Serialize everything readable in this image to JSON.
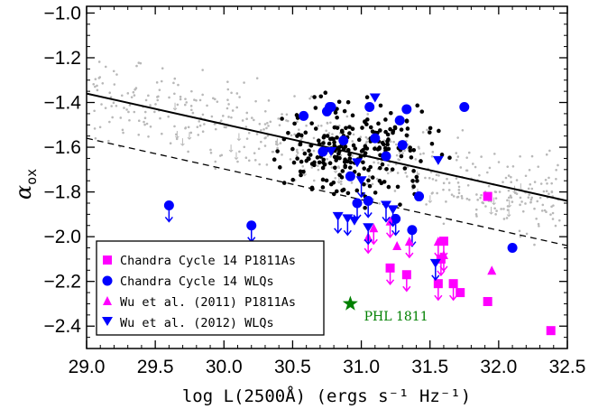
{
  "chart_data": {
    "type": "scatter",
    "xlabel": "log L(2500Å) (ergs s⁻¹ Hz⁻¹)",
    "ylabel_main": "α",
    "ylabel_sub": "ox",
    "xlim": [
      29.0,
      32.5
    ],
    "ylim": [
      -2.5,
      -0.97
    ],
    "xticks": [
      "29.0",
      "29.5",
      "30.0",
      "30.5",
      "31.0",
      "31.5",
      "32.0",
      "32.5"
    ],
    "yticks": [
      "-1.0",
      "-1.2",
      "-1.4",
      "-1.6",
      "-1.8",
      "-2.0",
      "-2.2",
      "-2.4"
    ],
    "xtick_values": [
      29.0,
      29.5,
      30.0,
      30.5,
      31.0,
      31.5,
      32.0,
      32.5
    ],
    "ytick_values": [
      -1.0,
      -1.2,
      -1.4,
      -1.6,
      -1.8,
      -2.0,
      -2.2,
      -2.4
    ],
    "legend_position": "lower-left",
    "lines": [
      {
        "style": "solid",
        "x": [
          29.0,
          32.5
        ],
        "y": [
          -1.36,
          -1.84
        ]
      },
      {
        "style": "dashed",
        "x": [
          29.0,
          32.5
        ],
        "y": [
          -1.56,
          -2.04
        ]
      }
    ],
    "series": [
      {
        "name": "Chandra Cycle 14 P1811As",
        "marker": "square",
        "color": "#ff00ff",
        "points": [
          {
            "x": 31.21,
            "y": -2.14,
            "upper": true
          },
          {
            "x": 31.33,
            "y": -2.17,
            "upper": true
          },
          {
            "x": 31.56,
            "y": -2.21,
            "upper": true
          },
          {
            "x": 31.58,
            "y": -2.1,
            "upper": true
          },
          {
            "x": 31.6,
            "y": -2.02,
            "upper": true
          },
          {
            "x": 31.67,
            "y": -2.21,
            "upper": true
          },
          {
            "x": 31.72,
            "y": -2.25,
            "upper": false
          },
          {
            "x": 31.92,
            "y": -1.82,
            "upper": false
          },
          {
            "x": 31.92,
            "y": -2.29,
            "upper": false
          },
          {
            "x": 32.38,
            "y": -2.42,
            "upper": false
          }
        ]
      },
      {
        "name": "Chandra Cycle 14 WLQs",
        "marker": "circle",
        "color": "#0000ff",
        "points": [
          {
            "x": 29.6,
            "y": -1.86,
            "upper": true
          },
          {
            "x": 30.2,
            "y": -1.95,
            "upper": true
          },
          {
            "x": 30.58,
            "y": -1.46,
            "upper": false
          },
          {
            "x": 30.72,
            "y": -1.62,
            "upper": false
          },
          {
            "x": 30.75,
            "y": -1.44,
            "upper": false
          },
          {
            "x": 30.77,
            "y": -1.42,
            "upper": false
          },
          {
            "x": 30.78,
            "y": -1.42,
            "upper": false
          },
          {
            "x": 30.87,
            "y": -1.57,
            "upper": false
          },
          {
            "x": 30.92,
            "y": -1.73,
            "upper": false
          },
          {
            "x": 30.97,
            "y": -1.85,
            "upper": true
          },
          {
            "x": 31.05,
            "y": -1.84,
            "upper": true
          },
          {
            "x": 31.06,
            "y": -1.42,
            "upper": false
          },
          {
            "x": 31.1,
            "y": -1.56,
            "upper": false
          },
          {
            "x": 31.18,
            "y": -1.64,
            "upper": false
          },
          {
            "x": 31.25,
            "y": -1.92,
            "upper": true
          },
          {
            "x": 31.28,
            "y": -1.48,
            "upper": false
          },
          {
            "x": 31.3,
            "y": -1.59,
            "upper": false
          },
          {
            "x": 31.33,
            "y": -1.43,
            "upper": false
          },
          {
            "x": 31.37,
            "y": -1.97,
            "upper": true
          },
          {
            "x": 31.42,
            "y": -1.82,
            "upper": false
          },
          {
            "x": 31.75,
            "y": -1.42,
            "upper": false
          },
          {
            "x": 32.1,
            "y": -2.05,
            "upper": false
          }
        ]
      },
      {
        "name": "Wu et al. (2011) P1811As",
        "marker": "triangle-up",
        "color": "#ff00ff",
        "points": [
          {
            "x": 31.05,
            "y": -2.0,
            "upper": true
          },
          {
            "x": 31.09,
            "y": -1.96,
            "upper": true
          },
          {
            "x": 31.21,
            "y": -1.93,
            "upper": true
          },
          {
            "x": 31.26,
            "y": -2.04,
            "upper": false
          },
          {
            "x": 31.35,
            "y": -2.02,
            "upper": true
          },
          {
            "x": 31.56,
            "y": -2.02,
            "upper": true
          },
          {
            "x": 31.6,
            "y": -2.08,
            "upper": true
          },
          {
            "x": 31.95,
            "y": -2.15,
            "upper": false
          }
        ]
      },
      {
        "name": "Wu et al. (2012) WLQs",
        "marker": "triangle-down",
        "color": "#0000ff",
        "points": [
          {
            "x": 30.78,
            "y": -1.62,
            "upper": false
          },
          {
            "x": 30.83,
            "y": -1.91,
            "upper": true
          },
          {
            "x": 30.9,
            "y": -1.92,
            "upper": true
          },
          {
            "x": 30.95,
            "y": -1.93,
            "upper": false
          },
          {
            "x": 30.97,
            "y": -1.67,
            "upper": false
          },
          {
            "x": 31.0,
            "y": -1.75,
            "upper": true
          },
          {
            "x": 31.05,
            "y": -1.96,
            "upper": true
          },
          {
            "x": 31.1,
            "y": -1.38,
            "upper": false
          },
          {
            "x": 31.18,
            "y": -1.86,
            "upper": true
          },
          {
            "x": 31.23,
            "y": -1.88,
            "upper": true
          },
          {
            "x": 31.54,
            "y": -2.12,
            "upper": true
          },
          {
            "x": 31.56,
            "y": -1.66,
            "upper": false
          }
        ]
      },
      {
        "marker": "star",
        "color": "#008000",
        "points": [
          {
            "x": 30.92,
            "y": -2.3,
            "upper": false
          }
        ]
      }
    ],
    "annotations": [
      {
        "text": "PHL 1811",
        "x": 31.02,
        "y": -2.355,
        "color": "#008000"
      }
    ]
  }
}
